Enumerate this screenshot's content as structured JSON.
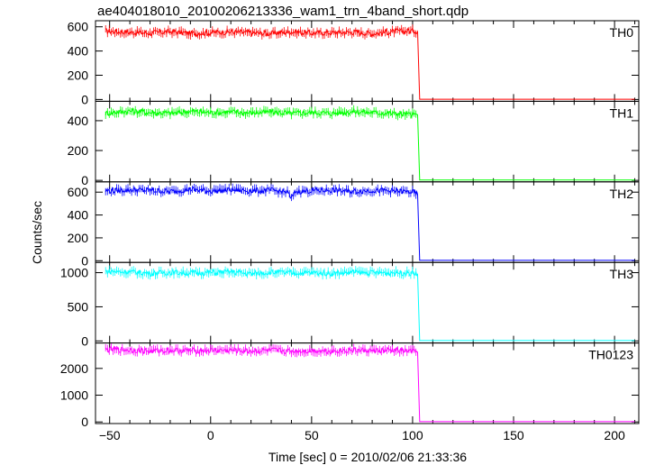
{
  "chart_data": {
    "type": "line",
    "title": "ae404018010_20100206213336_wam1_trn_4band_short.qdp",
    "xlabel": "Time [sec] 0 = 2010/02/06 21:33:36",
    "ylabel": "Counts/sec",
    "xlim": [
      -57,
      212
    ],
    "x_ticks": [
      -50,
      0,
      50,
      100,
      150,
      200
    ],
    "x_tick_labels": [
      "−50",
      "0",
      "50",
      "100",
      "150",
      "200"
    ],
    "grid": false,
    "panels": [
      {
        "name": "TH0",
        "color": "#ff0000",
        "ylim": [
          -15,
          650
        ],
        "y_ticks": [
          0,
          200,
          400,
          600
        ],
        "y_tick_labels": [
          "0",
          "200",
          "400",
          "600"
        ],
        "series": [
          {
            "x": [
              -52,
              -40,
              -30,
              -20,
              -10,
              0,
              10,
              20,
              30,
              40,
              50,
              60,
              70,
              80,
              90,
              100,
              102.5,
              103.5,
              110,
              150,
              200,
              210
            ],
            "y": [
              565,
              555,
              548,
              560,
              545,
              552,
              558,
              550,
              545,
              560,
              548,
              552,
              556,
              545,
              560,
              568,
              560,
              2,
              2,
              2,
              2,
              2
            ]
          }
        ]
      },
      {
        "name": "TH1",
        "color": "#00ff00",
        "ylim": [
          -10,
          530
        ],
        "y_ticks": [
          0,
          200,
          400
        ],
        "y_tick_labels": [
          "0",
          "200",
          "400"
        ],
        "series": [
          {
            "x": [
              -52,
              -40,
              -30,
              -20,
              -10,
              0,
              10,
              20,
              30,
              40,
              50,
              60,
              70,
              80,
              90,
              100,
              102.5,
              103.5,
              110,
              150,
              200,
              210
            ],
            "y": [
              450,
              465,
              455,
              450,
              462,
              455,
              458,
              452,
              460,
              448,
              456,
              450,
              462,
              455,
              448,
              440,
              440,
              2,
              2,
              2,
              2,
              2
            ]
          }
        ]
      },
      {
        "name": "TH2",
        "color": "#0000ff",
        "ylim": [
          -15,
          690
        ],
        "y_ticks": [
          0,
          200,
          400,
          600
        ],
        "y_tick_labels": [
          "0",
          "200",
          "400",
          "600"
        ],
        "series": [
          {
            "x": [
              -52,
              -40,
              -30,
              -20,
              -10,
              0,
              10,
              20,
              30,
              38,
              40,
              42,
              50,
              60,
              70,
              80,
              90,
              100,
              102.5,
              103.5,
              110,
              150,
              200,
              210
            ],
            "y": [
              610,
              620,
              615,
              605,
              625,
              610,
              620,
              612,
              615,
              600,
              540,
              605,
              612,
              618,
              605,
              615,
              610,
              600,
              580,
              3,
              3,
              3,
              3,
              3
            ]
          }
        ]
      },
      {
        "name": "TH3",
        "color": "#00ffff",
        "ylim": [
          -30,
          1150
        ],
        "y_ticks": [
          0,
          500,
          1000
        ],
        "y_tick_labels": [
          "0",
          "500",
          "1000"
        ],
        "series": [
          {
            "x": [
              -52,
              -40,
              -30,
              -20,
              -10,
              0,
              10,
              20,
              30,
              40,
              50,
              60,
              70,
              80,
              90,
              100,
              102.5,
              103.5,
              110,
              150,
              200,
              210
            ],
            "y": [
              1020,
              1010,
              990,
              1005,
              995,
              1000,
              1010,
              985,
              1005,
              995,
              1000,
              990,
              1008,
              998,
              1002,
              995,
              975,
              5,
              5,
              5,
              5,
              5
            ]
          }
        ]
      },
      {
        "name": "TH0123",
        "color": "#ff00ff",
        "ylim": [
          -60,
          2950
        ],
        "y_ticks": [
          0,
          1000,
          2000
        ],
        "y_tick_labels": [
          "0",
          "1000",
          "2000"
        ],
        "series": [
          {
            "x": [
              -52,
              -40,
              -30,
              -20,
              -10,
              0,
              10,
              20,
              30,
              40,
              50,
              60,
              70,
              80,
              90,
              100,
              102.5,
              103.5,
              110,
              150,
              200,
              210
            ],
            "y": [
              2700,
              2690,
              2650,
              2680,
              2660,
              2670,
              2680,
              2650,
              2670,
              2640,
              2660,
              2650,
              2680,
              2660,
              2670,
              2640,
              2600,
              10,
              10,
              10,
              10,
              10
            ]
          }
        ]
      }
    ]
  }
}
